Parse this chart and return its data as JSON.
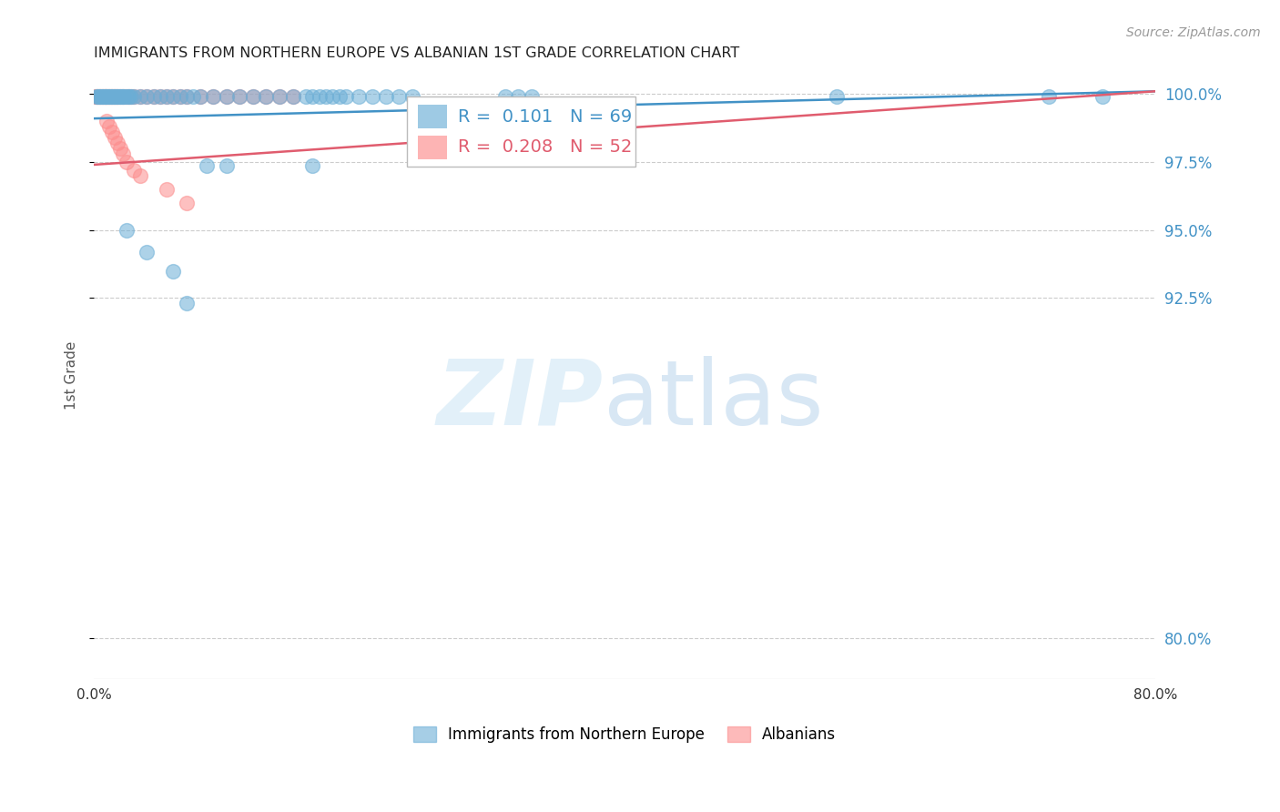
{
  "title": "IMMIGRANTS FROM NORTHERN EUROPE VS ALBANIAN 1ST GRADE CORRELATION CHART",
  "source": "Source: ZipAtlas.com",
  "ylabel": "1st Grade",
  "ytick_values": [
    0.8,
    0.925,
    0.95,
    0.975,
    1.0
  ],
  "ytick_labels": [
    "80.0%",
    "92.5%",
    "95.0%",
    "97.5%",
    "100.0%"
  ],
  "xlim": [
    0.0,
    0.8
  ],
  "ylim": [
    0.785,
    1.008
  ],
  "blue_R": 0.101,
  "blue_N": 69,
  "pink_R": 0.208,
  "pink_N": 52,
  "blue_color": "#6baed6",
  "pink_color": "#fc8d8d",
  "trend_blue": "#4292c6",
  "trend_pink": "#e05c6e",
  "legend_labels": [
    "Immigrants from Northern Europe",
    "Albanians"
  ],
  "blue_trend_x0": 0.0,
  "blue_trend_y0": 0.991,
  "blue_trend_x1": 0.8,
  "blue_trend_y1": 1.001,
  "pink_trend_x0": 0.0,
  "pink_trend_y0": 0.974,
  "pink_trend_x1": 0.8,
  "pink_trend_y1": 1.001,
  "blue_x": [
    0.002,
    0.003,
    0.004,
    0.005,
    0.006,
    0.007,
    0.008,
    0.009,
    0.01,
    0.011,
    0.012,
    0.013,
    0.014,
    0.015,
    0.016,
    0.017,
    0.018,
    0.019,
    0.02,
    0.021,
    0.022,
    0.023,
    0.025,
    0.026,
    0.027,
    0.028,
    0.03,
    0.035,
    0.04,
    0.045,
    0.05,
    0.055,
    0.06,
    0.065,
    0.07,
    0.075,
    0.08,
    0.09,
    0.1,
    0.11,
    0.12,
    0.13,
    0.14,
    0.15,
    0.16,
    0.165,
    0.17,
    0.175,
    0.18,
    0.185,
    0.19,
    0.2,
    0.21,
    0.22,
    0.23,
    0.24,
    0.31,
    0.32,
    0.33,
    0.56,
    0.72,
    0.76,
    0.085,
    0.165,
    0.1,
    0.025,
    0.04,
    0.06,
    0.07
  ],
  "blue_y": [
    0.999,
    0.999,
    0.999,
    0.999,
    0.999,
    0.999,
    0.999,
    0.999,
    0.999,
    0.999,
    0.999,
    0.999,
    0.999,
    0.999,
    0.999,
    0.999,
    0.999,
    0.999,
    0.999,
    0.999,
    0.999,
    0.999,
    0.999,
    0.999,
    0.999,
    0.999,
    0.999,
    0.999,
    0.999,
    0.999,
    0.999,
    0.999,
    0.999,
    0.999,
    0.999,
    0.999,
    0.999,
    0.999,
    0.999,
    0.999,
    0.999,
    0.999,
    0.999,
    0.999,
    0.999,
    0.999,
    0.999,
    0.999,
    0.999,
    0.999,
    0.999,
    0.999,
    0.999,
    0.999,
    0.999,
    0.999,
    0.999,
    0.999,
    0.999,
    0.999,
    0.999,
    0.999,
    0.9735,
    0.9735,
    0.9735,
    0.95,
    0.942,
    0.935,
    0.923
  ],
  "pink_x": [
    0.001,
    0.002,
    0.003,
    0.004,
    0.005,
    0.006,
    0.007,
    0.008,
    0.009,
    0.01,
    0.011,
    0.012,
    0.013,
    0.014,
    0.015,
    0.016,
    0.017,
    0.018,
    0.02,
    0.022,
    0.024,
    0.026,
    0.028,
    0.03,
    0.035,
    0.04,
    0.045,
    0.05,
    0.055,
    0.06,
    0.065,
    0.07,
    0.08,
    0.09,
    0.1,
    0.11,
    0.12,
    0.13,
    0.14,
    0.15,
    0.01,
    0.012,
    0.014,
    0.016,
    0.018,
    0.02,
    0.022,
    0.025,
    0.03,
    0.035,
    0.055,
    0.07
  ],
  "pink_y": [
    0.999,
    0.999,
    0.999,
    0.999,
    0.999,
    0.999,
    0.999,
    0.999,
    0.999,
    0.999,
    0.999,
    0.999,
    0.999,
    0.999,
    0.999,
    0.999,
    0.999,
    0.999,
    0.999,
    0.999,
    0.999,
    0.999,
    0.999,
    0.999,
    0.999,
    0.999,
    0.999,
    0.999,
    0.999,
    0.999,
    0.999,
    0.999,
    0.999,
    0.999,
    0.999,
    0.999,
    0.999,
    0.999,
    0.999,
    0.999,
    0.99,
    0.988,
    0.986,
    0.984,
    0.982,
    0.98,
    0.978,
    0.975,
    0.972,
    0.97,
    0.965,
    0.96
  ]
}
